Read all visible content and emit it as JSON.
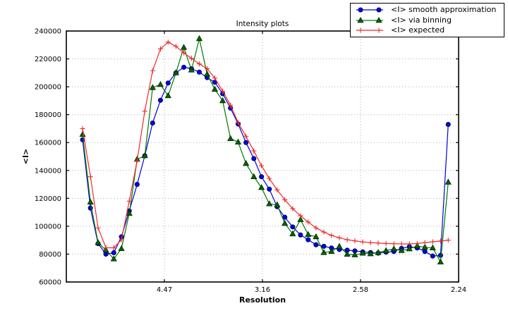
{
  "chart_data": {
    "type": "line",
    "title": "Intensity plots",
    "xlabel": "Resolution",
    "ylabel": "<I>",
    "grid": true,
    "legend_position": "upper right, overlapping top-right corner of axes",
    "ylim": [
      60000,
      240000
    ],
    "y_tick_step": 20000,
    "x_axis": {
      "unit": "1/d^2 (resolution in Angstrom shown on ticks)",
      "min": 0,
      "max": 0.2,
      "tick_values": [
        0.05,
        0.1,
        0.15,
        0.2
      ],
      "tick_labels": [
        "4.47",
        "3.16",
        "2.58",
        "2.24"
      ]
    },
    "x": [
      0.0083,
      0.0123,
      0.0162,
      0.0202,
      0.0242,
      0.0281,
      0.0321,
      0.0361,
      0.04,
      0.044,
      0.048,
      0.0519,
      0.0559,
      0.0599,
      0.0638,
      0.0678,
      0.0718,
      0.0757,
      0.0797,
      0.0837,
      0.0876,
      0.0916,
      0.0956,
      0.0995,
      0.1035,
      0.1075,
      0.1114,
      0.1154,
      0.1194,
      0.1233,
      0.1273,
      0.1313,
      0.1352,
      0.1392,
      0.1432,
      0.1471,
      0.1511,
      0.1551,
      0.159,
      0.163,
      0.167,
      0.1709,
      0.1749,
      0.1789,
      0.1828,
      0.1868,
      0.1908,
      0.1947
    ],
    "series": [
      {
        "name": "<I> smooth approximation",
        "color": "#0000dd",
        "marker": "circle",
        "marker_fill": "#0000ee",
        "marker_edge": "#00004d",
        "values": [
          162000,
          113000,
          87500,
          80000,
          81000,
          92400,
          111000,
          130000,
          150500,
          174000,
          190300,
          202700,
          210000,
          214000,
          213000,
          210500,
          206600,
          203300,
          195000,
          184700,
          173300,
          160000,
          148500,
          135500,
          126600,
          114000,
          106400,
          99500,
          93700,
          90300,
          86700,
          85600,
          84400,
          83300,
          82800,
          82300,
          81600,
          81100,
          80700,
          81400,
          81900,
          84100,
          85300,
          84400,
          81900,
          78600,
          79100,
          173000
        ]
      },
      {
        "name": "<I> via binning",
        "color": "#007a00",
        "marker": "triangle",
        "marker_fill": "#006400",
        "marker_edge": "#012401",
        "values": [
          165800,
          117300,
          88200,
          82800,
          76500,
          83900,
          109200,
          148000,
          150500,
          199400,
          201600,
          193600,
          210000,
          228200,
          212000,
          234500,
          209000,
          198200,
          190000,
          162800,
          160300,
          145000,
          135500,
          127700,
          116000,
          115300,
          102000,
          94500,
          104700,
          94000,
          92400,
          81100,
          81900,
          85500,
          79900,
          79400,
          80600,
          80200,
          81100,
          82500,
          83700,
          82500,
          83700,
          85900,
          84900,
          84400,
          74300,
          131600
        ]
      },
      {
        "name": "<I> expected",
        "color": "#ee2a2a",
        "marker": "plus",
        "marker_fill": "#ee2a2a",
        "marker_edge": "#ee2a2a",
        "values": [
          170000,
          135500,
          98800,
          84500,
          84500,
          90300,
          118000,
          147000,
          182500,
          211500,
          227200,
          232000,
          229000,
          224300,
          220400,
          216400,
          213000,
          206300,
          196900,
          186800,
          174300,
          164500,
          154000,
          143400,
          134200,
          126000,
          119000,
          112600,
          107500,
          103000,
          98800,
          95800,
          93400,
          91700,
          90300,
          89500,
          88700,
          88200,
          87900,
          87600,
          87400,
          87300,
          87300,
          87600,
          88200,
          88800,
          89400,
          90000
        ]
      }
    ],
    "style": {
      "grid_color": "#b0b0b0",
      "frame_color": "#000000",
      "background": "#ffffff",
      "text_color": "#000000"
    }
  }
}
